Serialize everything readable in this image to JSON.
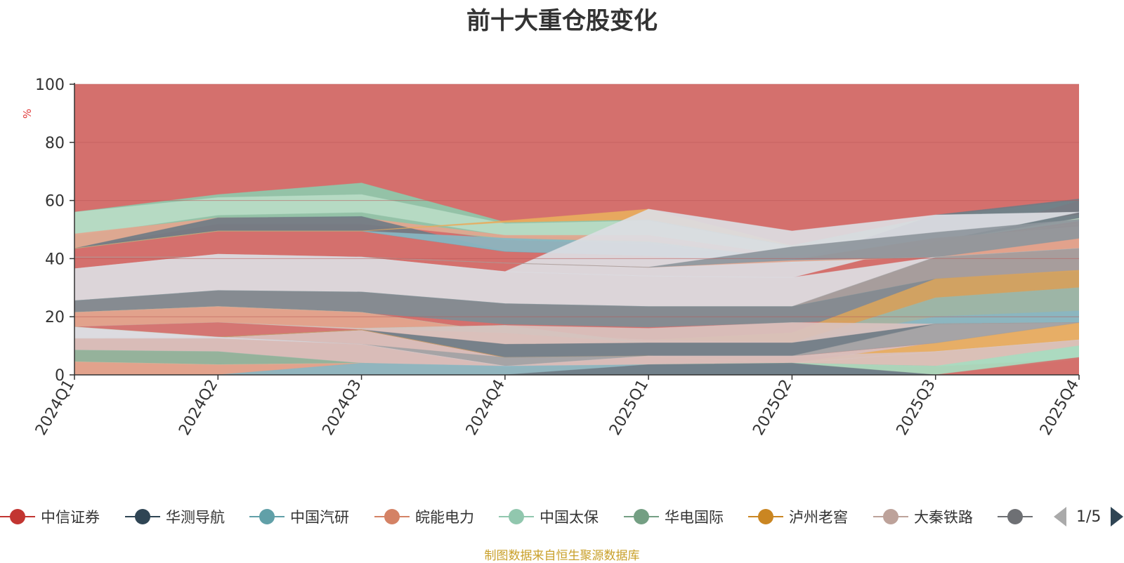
{
  "title": "前十大重仓股变化",
  "source": "制图数据来自恒生聚源数据库",
  "pager": "1/5",
  "colors": {
    "axis": "#333333",
    "grid": "#b95757",
    "ylabel": "#e03a3a",
    "background_area": "#d4706d"
  },
  "chart_data": {
    "type": "area",
    "title": "前十大重仓股变化",
    "xlabel": "",
    "ylabel": "%",
    "ylim": [
      0,
      100
    ],
    "yticks": [
      0,
      20,
      40,
      60,
      80,
      100
    ],
    "categories": [
      "2024Q1",
      "2024Q2",
      "2024Q3",
      "2024Q4",
      "2025Q1",
      "2025Q2",
      "2025Q3",
      "2025Q4"
    ],
    "background_series": {
      "lower": [
        0,
        0,
        0,
        0,
        0,
        0,
        0,
        0
      ],
      "upper": [
        100,
        100,
        100,
        100,
        100,
        100,
        100,
        100
      ],
      "color": "#d4706d"
    },
    "series": [
      {
        "name": "band-01",
        "color": "#8ec9ac",
        "lower": [
          43.5,
          53,
          53,
          46.5,
          45,
          39,
          46,
          60
        ],
        "upper": [
          56,
          62,
          66,
          52.5,
          53.5,
          44.5,
          54.5,
          60
        ]
      },
      {
        "name": "band-02",
        "color": "#b8dcc6",
        "lower": [
          48,
          55,
          56,
          48,
          47,
          40,
          46,
          53
        ],
        "upper": [
          56,
          61,
          62,
          52,
          53,
          44,
          50,
          55
        ]
      },
      {
        "name": "band-03",
        "color": "#e3a68f",
        "lower": [
          43.5,
          52,
          52,
          47,
          46,
          40,
          46,
          50
        ],
        "upper": [
          48.5,
          54,
          54,
          48,
          48,
          41,
          46,
          51
        ]
      },
      {
        "name": "band-04",
        "color": "#6f7c86",
        "lower": [
          43.5,
          49.5,
          49.5,
          42.5,
          41,
          38.5,
          46,
          54
        ],
        "upper": [
          43.5,
          54,
          54.5,
          42.5,
          41,
          38.5,
          55,
          60.5
        ]
      },
      {
        "name": "band-05",
        "color": "#8ab6c2",
        "lower": [
          43.5,
          49.5,
          49.5,
          42.5,
          41,
          38.5,
          41,
          47
        ],
        "upper": [
          43.5,
          49.5,
          49.5,
          47,
          45.5,
          40,
          41,
          47
        ]
      },
      {
        "name": "band-06",
        "color": "#e8ac5e",
        "lower": [
          43.5,
          49.5,
          49.5,
          52.5,
          53.5,
          44.5,
          46,
          52
        ],
        "upper": [
          43.5,
          49.5,
          49.5,
          53,
          57,
          44.5,
          46,
          52
        ]
      },
      {
        "name": "band-07",
        "color": "#dcdde3",
        "lower": [
          36.5,
          41.5,
          40.5,
          35.5,
          34,
          33.5,
          46,
          56
        ],
        "upper": [
          36.5,
          41.5,
          40.5,
          35.5,
          57,
          49.5,
          55,
          56
        ]
      },
      {
        "name": "band-08",
        "color": "#e3a68f",
        "lower": [
          40.5,
          40.5,
          40.5,
          38.5,
          37,
          39,
          40.5,
          43.5
        ],
        "upper": [
          40.5,
          40.5,
          40.5,
          38.5,
          37,
          39.5,
          47,
          51
        ]
      },
      {
        "name": "band-09",
        "color": "#8e969c",
        "lower": [
          40.5,
          40.5,
          40.5,
          38.5,
          37,
          39.5,
          40.5,
          47
        ],
        "upper": [
          40.5,
          40.5,
          40.5,
          38.5,
          37,
          44,
          49,
          53.5
        ]
      },
      {
        "name": "band-10",
        "color": "#dcdde3",
        "lower": [
          25.5,
          29,
          28.5,
          24.5,
          23.5,
          23.5,
          40.5,
          43.5
        ],
        "upper": [
          36.5,
          41.5,
          40.5,
          35.5,
          34,
          33.5,
          40.5,
          43.5
        ]
      },
      {
        "name": "band-11",
        "color": "#a3a1a1",
        "lower": [
          25.5,
          29,
          28.5,
          24.5,
          23.5,
          23.5,
          33,
          35.5
        ],
        "upper": [
          25.5,
          29,
          28.5,
          24.5,
          23.5,
          23.5,
          40.5,
          43.5
        ]
      },
      {
        "name": "band-12",
        "color": "#7f8d95",
        "lower": [
          21.5,
          23.5,
          21.5,
          17.5,
          16.5,
          18,
          20,
          20
        ],
        "upper": [
          25.5,
          29,
          28.5,
          24.5,
          23.5,
          23.5,
          33,
          35.5
        ]
      },
      {
        "name": "band-13",
        "color": "#d8a45e",
        "lower": [
          21.5,
          23.5,
          21.5,
          14.5,
          12,
          11,
          26.5,
          30
        ],
        "upper": [
          21.5,
          23.5,
          21.5,
          14.5,
          12,
          14.5,
          33,
          36
        ]
      },
      {
        "name": "band-14",
        "color": "#9fb8a8",
        "lower": [
          21.5,
          23.5,
          21.5,
          14.5,
          12,
          11,
          18,
          18
        ],
        "upper": [
          21.5,
          23.5,
          21.5,
          14.5,
          12,
          11,
          26.5,
          30
        ]
      },
      {
        "name": "band-15",
        "color": "#8ab6c2",
        "lower": [
          21.5,
          23.5,
          21.5,
          14.5,
          12,
          11,
          17.5,
          18
        ],
        "upper": [
          21.5,
          23.5,
          21.5,
          14.5,
          12,
          11,
          20,
          22
        ]
      },
      {
        "name": "band-16",
        "color": "#e3a68f",
        "lower": [
          16.5,
          18,
          16,
          10.5,
          11,
          11,
          17.5,
          18
        ],
        "upper": [
          21.5,
          23.5,
          21.5,
          14.5,
          12,
          11,
          17.5,
          18
        ]
      },
      {
        "name": "band-17",
        "color": "#9fd0b6",
        "lower": [
          16.5,
          18,
          16,
          14.5,
          11,
          11,
          17.5,
          18
        ],
        "upper": [
          16.5,
          18,
          16,
          17,
          11,
          11,
          17.5,
          18
        ]
      },
      {
        "name": "band-18",
        "color": "#d9c2bf",
        "lower": [
          12.5,
          13,
          10.5,
          3,
          6.5,
          6.5,
          8,
          12
        ],
        "upper": [
          16.5,
          18,
          16,
          17,
          16,
          18,
          17.5,
          18
        ]
      },
      {
        "name": "band-19",
        "color": "#d4706d",
        "lower": [
          16.5,
          13,
          15.5,
          6,
          6.5,
          6.5,
          11,
          18
        ],
        "upper": [
          16.5,
          18,
          15.5,
          6,
          6.5,
          6.5,
          11,
          18
        ]
      },
      {
        "name": "band-20",
        "color": "#6f7c86",
        "lower": [
          16.5,
          13,
          15.5,
          6,
          6.5,
          6.5,
          17.5,
          18
        ],
        "upper": [
          16.5,
          13,
          15.5,
          10.5,
          11,
          11,
          17.5,
          18
        ]
      },
      {
        "name": "band-21",
        "color": "#e8ac5e",
        "lower": [
          16.5,
          13,
          15.5,
          6,
          6.5,
          4,
          3,
          5.5
        ],
        "upper": [
          16.5,
          13,
          15.5,
          6,
          6.5,
          4,
          11,
          18
        ]
      },
      {
        "name": "band-22",
        "color": "#a2a2a4",
        "lower": [
          12.5,
          13,
          10.5,
          3,
          6.5,
          6.5,
          11,
          18
        ],
        "upper": [
          12.5,
          13,
          10.5,
          6,
          6.5,
          6.5,
          17.5,
          18
        ]
      },
      {
        "name": "band-23",
        "color": "#dcdde3",
        "lower": [
          12.5,
          12.5,
          10.5,
          3,
          3.5,
          4,
          8,
          12
        ],
        "upper": [
          16.5,
          13,
          10.5,
          3,
          3.5,
          4,
          8,
          12
        ]
      },
      {
        "name": "band-24",
        "color": "#d9c2bf",
        "lower": [
          8.5,
          8,
          4,
          2.5,
          3.5,
          4,
          3,
          5.5
        ],
        "upper": [
          12.5,
          12.5,
          10.5,
          3,
          6.5,
          6.5,
          8,
          12
        ]
      },
      {
        "name": "band-25",
        "color": "#8fb7a0",
        "lower": [
          4.5,
          3.5,
          4,
          2.5,
          3.5,
          4,
          3,
          5.5
        ],
        "upper": [
          8.5,
          8,
          4,
          2.5,
          3.5,
          4,
          3,
          5.5
        ]
      },
      {
        "name": "band-26",
        "color": "#a8dcc0",
        "lower": [
          4.5,
          3.5,
          4,
          2.5,
          3.5,
          3.5,
          0,
          5.5
        ],
        "upper": [
          4.5,
          3.5,
          4,
          2.5,
          3.5,
          4,
          3,
          10
        ]
      },
      {
        "name": "band-27",
        "color": "#e3a68f",
        "lower": [
          0,
          0,
          0,
          0,
          0,
          0,
          0,
          0
        ],
        "upper": [
          4.5,
          3.5,
          4,
          2.5,
          3.5,
          3.5,
          0,
          0
        ]
      },
      {
        "name": "band-28",
        "color": "#8ab6c2",
        "lower": [
          0,
          0,
          0,
          0,
          0,
          0,
          0,
          0
        ],
        "upper": [
          0,
          0,
          4,
          3,
          3.5,
          3.5,
          0,
          0
        ]
      },
      {
        "name": "band-29",
        "color": "#6f7c86",
        "lower": [
          0,
          0,
          0,
          0,
          0,
          0,
          0,
          0
        ],
        "upper": [
          0,
          0,
          0,
          0,
          3.5,
          4,
          0,
          0
        ]
      },
      {
        "name": "band-30",
        "color": "#d4706d",
        "lower": [
          0,
          0,
          0,
          0,
          0,
          0,
          0,
          0
        ],
        "upper": [
          0,
          0,
          0,
          0,
          0,
          0,
          0,
          6
        ]
      }
    ],
    "legend_position": "bottom",
    "legend": [
      {
        "name": "中信证券",
        "color": "#c23531"
      },
      {
        "name": "华测导航",
        "color": "#2f4554"
      },
      {
        "name": "中国汽研",
        "color": "#61a0a8"
      },
      {
        "name": "皖能电力",
        "color": "#d48265"
      },
      {
        "name": "中国太保",
        "color": "#91c7ae"
      },
      {
        "name": "华电国际",
        "color": "#749f83"
      },
      {
        "name": "泸州老窖",
        "color": "#ca8622"
      },
      {
        "name": "大秦铁路",
        "color": "#bda29a"
      },
      {
        "name": "",
        "color": "#6e7074"
      }
    ]
  }
}
